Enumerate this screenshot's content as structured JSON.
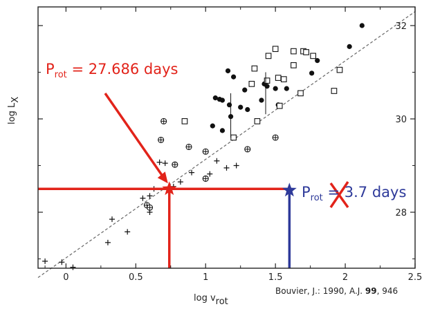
{
  "chart_data": {
    "type": "scatter",
    "title": "",
    "xlabel_main": "log v",
    "xlabel_sub": "rot",
    "ylabel_main": "log L",
    "ylabel_sub": "X",
    "xlim": [
      -0.2,
      2.5
    ],
    "ylim": [
      26.8,
      32.4
    ],
    "x_ticks": [
      0,
      0.5,
      1,
      1.5,
      2,
      2.5
    ],
    "x_tick_labels": [
      "0",
      "0.5",
      "1",
      "1.5",
      "2",
      "2.5"
    ],
    "y_ticks": [
      28,
      30,
      32
    ],
    "y_tick_labels": [
      "28",
      "30",
      "32"
    ],
    "grid": false,
    "series": [
      {
        "marker": "filled-circle",
        "points": [
          [
            2.12,
            32.0
          ],
          [
            2.03,
            31.55
          ],
          [
            1.8,
            31.25
          ],
          [
            1.76,
            30.98
          ],
          [
            1.16,
            31.03
          ],
          [
            1.2,
            30.9
          ],
          [
            1.28,
            30.62
          ],
          [
            1.3,
            30.2
          ],
          [
            1.4,
            30.4
          ],
          [
            1.52,
            30.3
          ],
          [
            1.42,
            30.75
          ],
          [
            1.44,
            30.7
          ],
          [
            1.5,
            30.65
          ],
          [
            1.07,
            30.45
          ],
          [
            1.1,
            30.42
          ],
          [
            1.12,
            30.4
          ],
          [
            1.17,
            30.3
          ],
          [
            1.25,
            30.25
          ],
          [
            1.18,
            30.05
          ],
          [
            1.05,
            29.85
          ],
          [
            1.12,
            29.75
          ],
          [
            1.58,
            30.65
          ]
        ]
      },
      {
        "marker": "open-square",
        "points": [
          [
            1.45,
            31.35
          ],
          [
            1.5,
            31.5
          ],
          [
            1.63,
            31.45
          ],
          [
            1.7,
            31.45
          ],
          [
            1.72,
            31.43
          ],
          [
            1.63,
            31.15
          ],
          [
            1.35,
            31.08
          ],
          [
            1.52,
            30.88
          ],
          [
            1.56,
            30.85
          ],
          [
            1.44,
            30.82
          ],
          [
            1.33,
            30.75
          ],
          [
            1.77,
            31.35
          ],
          [
            1.96,
            31.05
          ],
          [
            1.92,
            30.6
          ],
          [
            1.68,
            30.55
          ],
          [
            1.53,
            30.28
          ],
          [
            1.37,
            29.95
          ],
          [
            1.2,
            29.6
          ],
          [
            0.85,
            29.95
          ]
        ]
      },
      {
        "marker": "circled-plus",
        "points": [
          [
            0.7,
            29.95
          ],
          [
            0.68,
            29.55
          ],
          [
            0.88,
            29.4
          ],
          [
            1.0,
            29.3
          ],
          [
            1.3,
            29.35
          ],
          [
            1.5,
            29.6
          ],
          [
            0.78,
            29.02
          ],
          [
            1.0,
            28.72
          ],
          [
            0.58,
            28.15
          ],
          [
            0.6,
            28.1
          ]
        ]
      },
      {
        "marker": "plus",
        "points": [
          [
            -0.15,
            26.95
          ],
          [
            -0.03,
            26.93
          ],
          [
            0.05,
            26.82
          ],
          [
            0.3,
            27.35
          ],
          [
            0.33,
            27.85
          ],
          [
            0.44,
            27.58
          ],
          [
            0.55,
            28.3
          ],
          [
            0.63,
            28.5
          ],
          [
            0.6,
            28.0
          ],
          [
            0.67,
            29.07
          ],
          [
            0.71,
            29.05
          ],
          [
            0.77,
            28.55
          ],
          [
            0.82,
            28.65
          ],
          [
            1.03,
            28.82
          ],
          [
            1.08,
            29.1
          ],
          [
            1.15,
            28.95
          ],
          [
            1.22,
            29.0
          ],
          [
            0.9,
            28.85
          ],
          [
            0.6,
            28.35
          ]
        ]
      }
    ],
    "fit_line": [
      [
        -0.2,
        26.6
      ],
      [
        2.5,
        32.3
      ]
    ],
    "vertical_error_bars": [
      {
        "x": 1.18,
        "y_from": 29.6,
        "y_to": 30.55
      },
      {
        "x": 1.43,
        "y_from": 30.1,
        "y_to": 31.0
      }
    ],
    "annotations": [
      {
        "label": "P_rot = 27.686 days",
        "color": "#e2231a",
        "x": 0.74,
        "y": 28.5,
        "marker": "star"
      },
      {
        "label": "P_rot = 3.7 days",
        "color": "#2e3a9a",
        "x": 1.6,
        "y": 28.47,
        "marker": "star",
        "struck_out": true
      }
    ]
  },
  "text": {
    "ylabel_main": "log L",
    "ylabel_sub": "X",
    "xlabel_main": "log v",
    "xlabel_sub": "rot",
    "citation_pre": "Bouvier, J.: 1990, A.J. ",
    "citation_bold": "99",
    "citation_post": ", 946",
    "red_pre": "P",
    "red_sub": "rot",
    "red_post": " = 27.686 days",
    "blue_pre": "P",
    "blue_sub": "rot",
    "blue_mid": " = ",
    "blue_post": "3.7 days"
  },
  "colors": {
    "red": "#e2231a",
    "blue": "#2e3a9a",
    "axis": "#222222",
    "fit_line": "#666666"
  }
}
